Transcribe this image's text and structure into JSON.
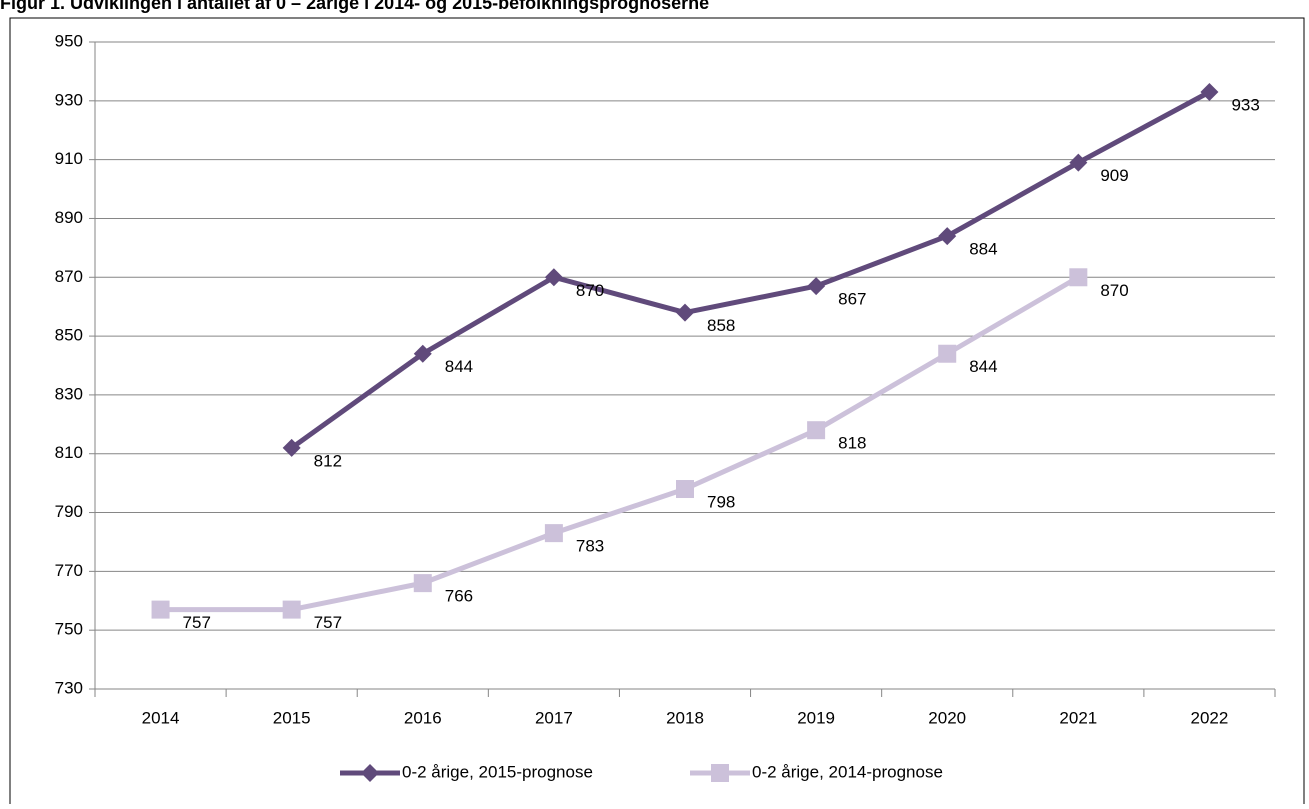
{
  "chart_data": {
    "type": "line",
    "title": "Figur 1. Udviklingen i antallet af 0 – 2årige i 2014- og 2015-befolkningsprognoserne",
    "categories": [
      "2014",
      "2015",
      "2016",
      "2017",
      "2018",
      "2019",
      "2020",
      "2021",
      "2022"
    ],
    "series": [
      {
        "name": "0-2 årige, 2015-prognose",
        "color": "#604a7b",
        "marker": "diamond",
        "values": [
          null,
          812,
          844,
          870,
          858,
          867,
          884,
          909,
          933
        ]
      },
      {
        "name": "0-2 årige, 2014-prognose",
        "color": "#ccc1da",
        "marker": "square",
        "values": [
          757,
          757,
          766,
          783,
          798,
          818,
          844,
          870,
          null
        ]
      }
    ],
    "ylim": [
      730,
      950
    ],
    "yticks": [
      730,
      750,
      770,
      790,
      810,
      830,
      850,
      870,
      890,
      910,
      930,
      950
    ],
    "grid": true,
    "legend": "bottom"
  }
}
